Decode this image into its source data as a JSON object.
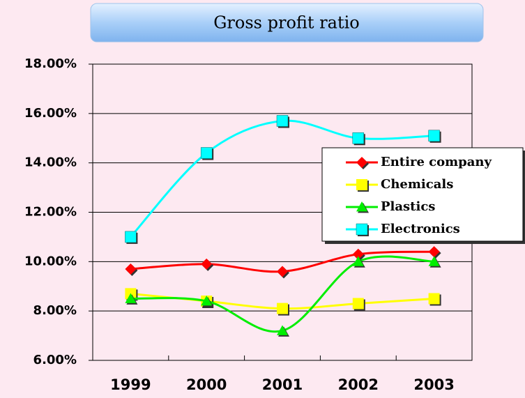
{
  "chart_data": {
    "type": "line",
    "title": "Gross profit ratio",
    "categories": [
      "1999",
      "2000",
      "2001",
      "2002",
      "2003"
    ],
    "series": [
      {
        "name": "Entire company",
        "color": "#ff0000",
        "marker": "diamond",
        "values": [
          9.7,
          9.9,
          9.6,
          10.3,
          10.4
        ]
      },
      {
        "name": "Chemicals",
        "color": "#ffff00",
        "marker": "square",
        "values": [
          8.7,
          8.4,
          8.1,
          8.3,
          8.5
        ]
      },
      {
        "name": "Plastics",
        "color": "#00ee00",
        "marker": "triangle",
        "values": [
          8.5,
          8.4,
          7.2,
          10.0,
          10.0
        ]
      },
      {
        "name": "Electronics",
        "color": "#00ffff",
        "marker": "square",
        "values": [
          11.0,
          14.4,
          15.7,
          15.0,
          15.1
        ]
      }
    ],
    "ylim": [
      6,
      18
    ],
    "yticks": [
      {
        "value": 6,
        "label": "6.00%"
      },
      {
        "value": 8,
        "label": "8.00%"
      },
      {
        "value": 10,
        "label": "10.00%"
      },
      {
        "value": 12,
        "label": "12.00%"
      },
      {
        "value": 14,
        "label": "14.00%"
      },
      {
        "value": 16,
        "label": "16.00%"
      },
      {
        "value": 18,
        "label": "18.00%"
      }
    ],
    "grid": true
  }
}
